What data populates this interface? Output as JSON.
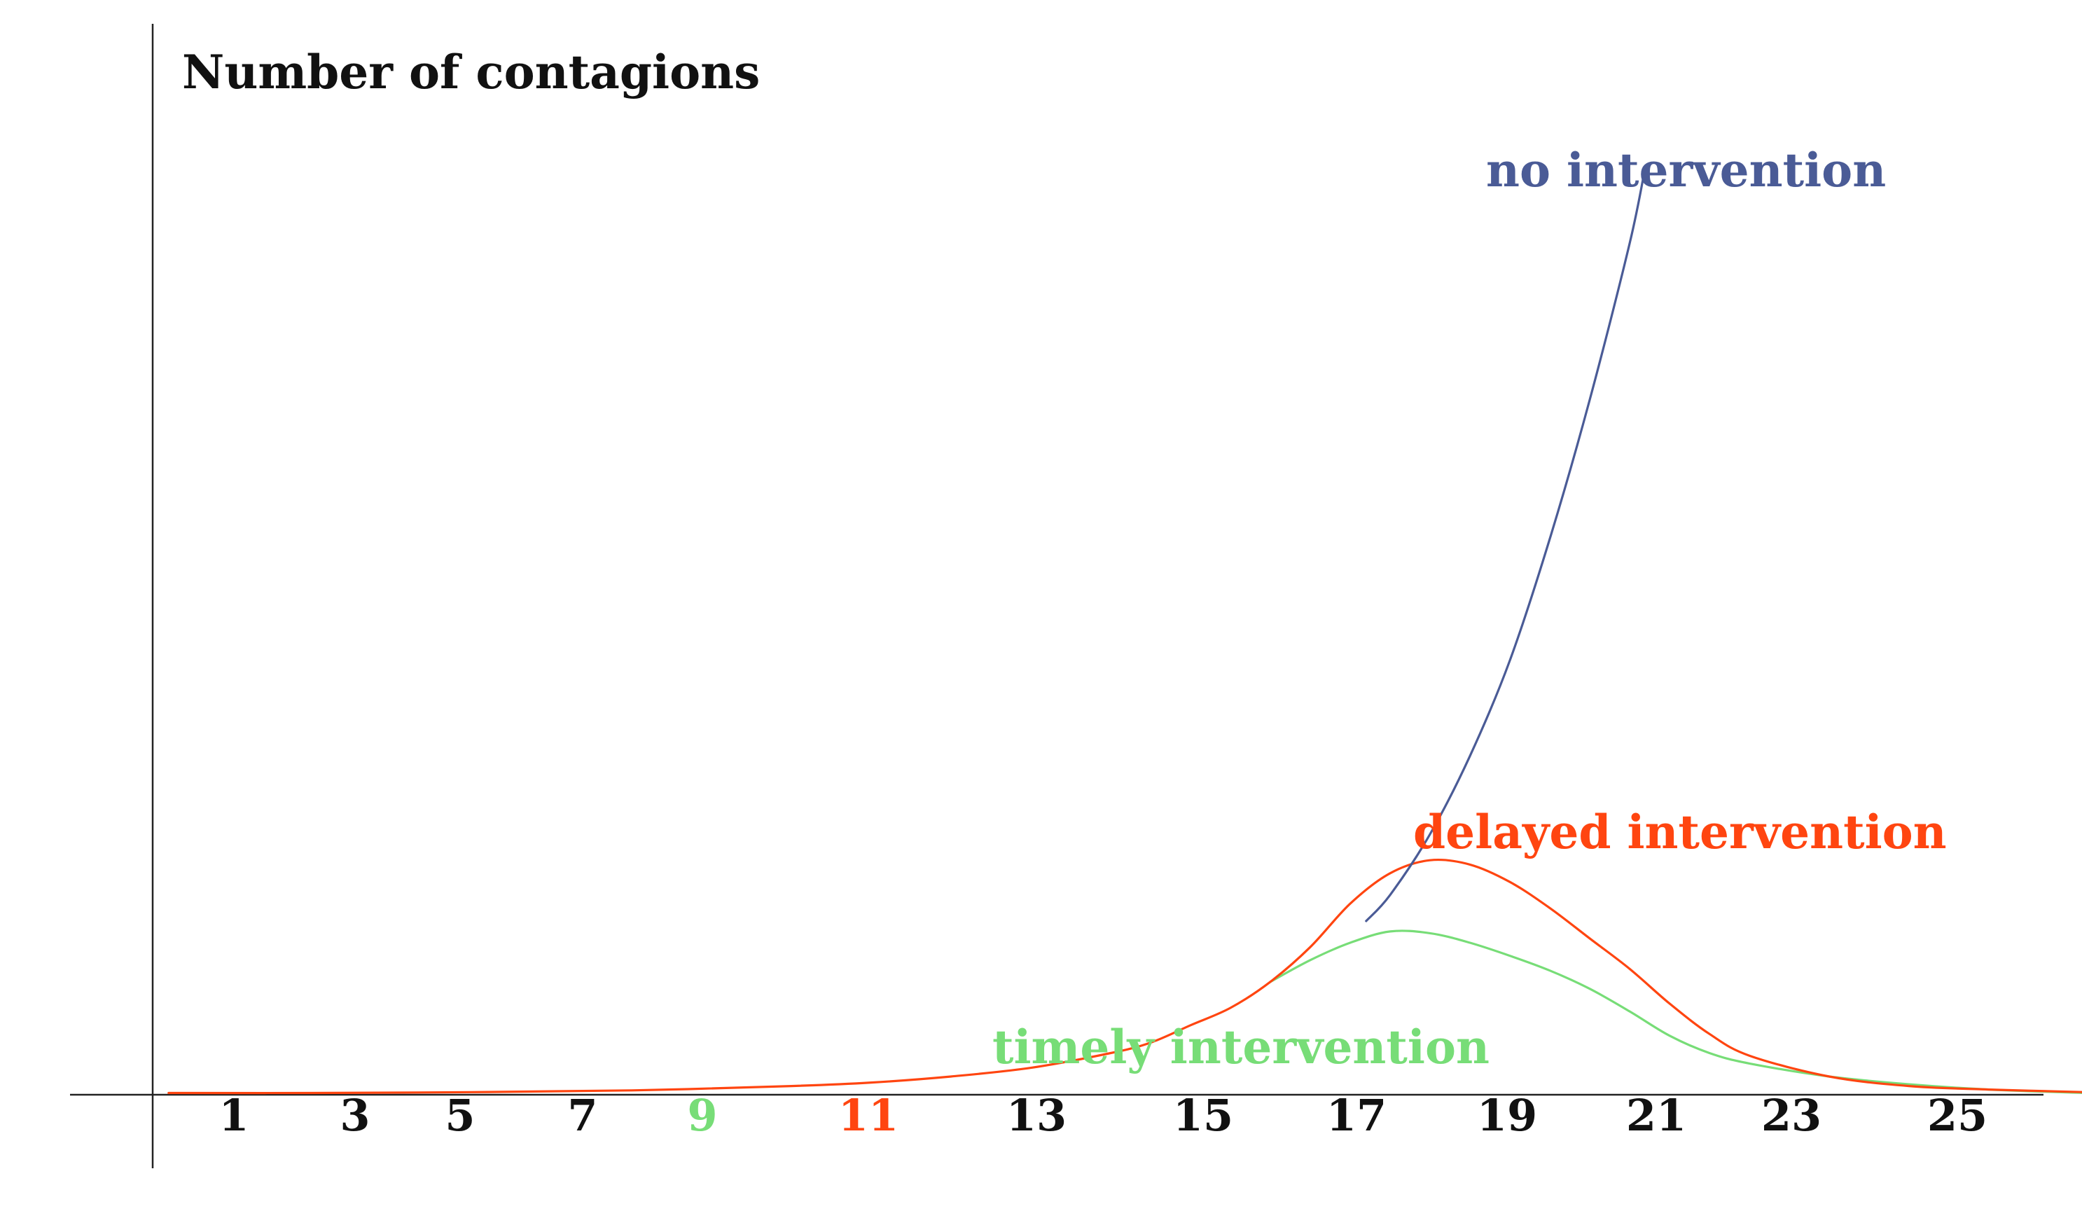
{
  "chart_data": {
    "type": "line",
    "title": "",
    "xlabel": "",
    "ylabel": "Number of contagions",
    "xlim": [
      0,
      26
    ],
    "ylim": [
      0,
      100
    ],
    "grid": false,
    "legend": "inline labels at line ends",
    "x_ticks": [
      {
        "label": "1",
        "value": 1,
        "color": "#111111"
      },
      {
        "label": "3",
        "value": 3,
        "color": "#111111"
      },
      {
        "label": "5",
        "value": 5,
        "color": "#111111"
      },
      {
        "label": "7",
        "value": 7,
        "color": "#111111"
      },
      {
        "label": "9",
        "value": 9,
        "color": "#77dd77"
      },
      {
        "label": "11",
        "value": 11,
        "color": "#ff4510"
      },
      {
        "label": "13",
        "value": 13,
        "color": "#111111"
      },
      {
        "label": "15",
        "value": 15,
        "color": "#111111"
      },
      {
        "label": "17",
        "value": 17,
        "color": "#111111"
      },
      {
        "label": "19",
        "value": 19,
        "color": "#111111"
      },
      {
        "label": "21",
        "value": 21,
        "color": "#111111"
      },
      {
        "label": "23",
        "value": 23,
        "color": "#111111"
      },
      {
        "label": "25",
        "value": 25,
        "color": "#111111"
      }
    ],
    "series": [
      {
        "name": "no intervention",
        "color": "#4a5b96",
        "x": [
          15.2,
          15.5,
          16,
          16.5,
          17,
          17.5,
          18,
          18.5,
          18.7
        ],
        "y": [
          20,
          23,
          30,
          39,
          50,
          64,
          80,
          98,
          107
        ]
      },
      {
        "name": "delayed intervention",
        "color": "#ff4510",
        "x": [
          0.2,
          2,
          4,
          6,
          8,
          9,
          10,
          11,
          12,
          12.5,
          13,
          13.5,
          14,
          14.5,
          15,
          15.5,
          16,
          16.5,
          17,
          17.5,
          18,
          18.5,
          19,
          19.5,
          20,
          21,
          22,
          23,
          24.2
        ],
        "y": [
          0.2,
          0.2,
          0.3,
          0.5,
          1,
          1.4,
          2.1,
          3.1,
          4.8,
          6,
          8,
          10,
          13,
          17,
          22,
          25.5,
          27,
          26.5,
          24.5,
          21.5,
          18,
          14.5,
          10.5,
          7,
          4.5,
          2.1,
          1,
          0.6,
          0.3
        ]
      },
      {
        "name": "timely intervention",
        "color": "#77dd77",
        "x": [
          14,
          14.5,
          15,
          15.5,
          16,
          16.5,
          17,
          17.5,
          18,
          18.5,
          19,
          19.5,
          20,
          21,
          22,
          23,
          24.2
        ],
        "y": [
          13,
          15.5,
          17.5,
          18.8,
          18.6,
          17.5,
          16,
          14.3,
          12.2,
          9.6,
          6.8,
          4.8,
          3.6,
          2.1,
          1.2,
          0.6,
          0.2
        ]
      }
    ]
  }
}
